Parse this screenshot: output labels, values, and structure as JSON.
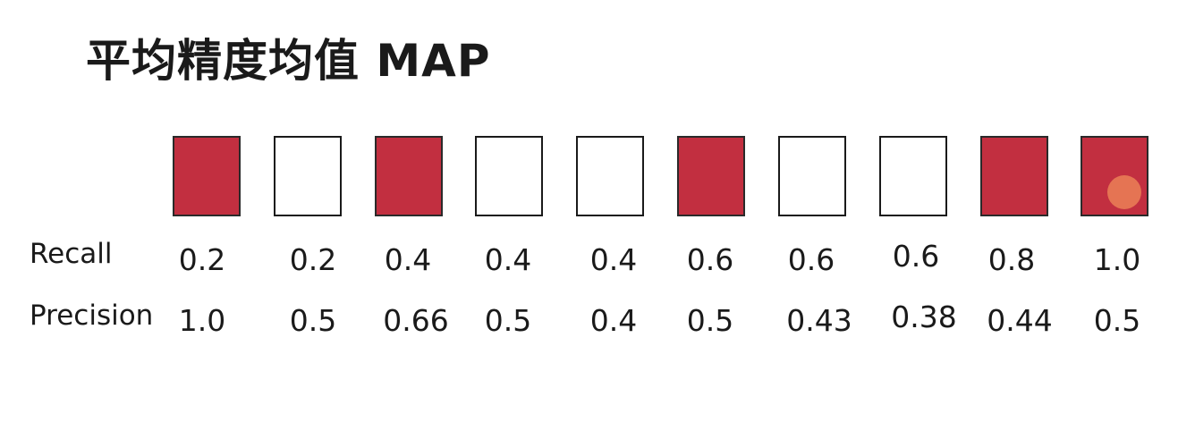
{
  "title": "平均精度均值 MAP",
  "row_labels": {
    "recall": "Recall",
    "precision": "Precision"
  },
  "colors": {
    "relevant": "#c22f40",
    "not_relevant": "#ffffff",
    "cursor": "#f08c5a"
  },
  "items": [
    {
      "relevant": true,
      "recall": "0.2",
      "precision": "1.0"
    },
    {
      "relevant": false,
      "recall": "0.2",
      "precision": "0.5"
    },
    {
      "relevant": true,
      "recall": "0.4",
      "precision": "0.66"
    },
    {
      "relevant": false,
      "recall": "0.4",
      "precision": "0.5"
    },
    {
      "relevant": false,
      "recall": "0.4",
      "precision": "0.4"
    },
    {
      "relevant": true,
      "recall": "0.6",
      "precision": "0.5"
    },
    {
      "relevant": false,
      "recall": "0.6",
      "precision": "0.43"
    },
    {
      "relevant": false,
      "recall": "0.6",
      "precision": "0.38"
    },
    {
      "relevant": true,
      "recall": "0.8",
      "precision": "0.44"
    },
    {
      "relevant": true,
      "recall": "1.0",
      "precision": "0.5"
    }
  ]
}
